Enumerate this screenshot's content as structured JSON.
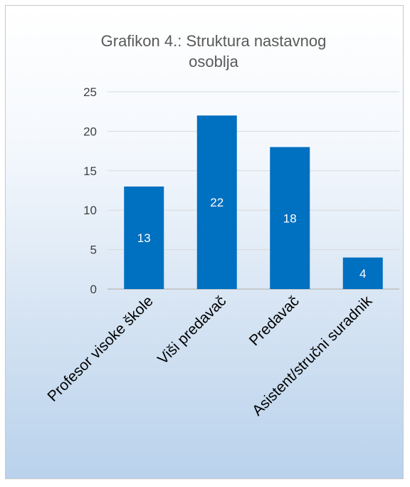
{
  "chart_data": {
    "type": "bar",
    "title_lines": [
      "Grafikon 4.: Struktura  nastavnog",
      "osoblja"
    ],
    "categories": [
      "Profesor visoke škole",
      "Viši predavač",
      "Predavač",
      "Asistent/stručni suradnik"
    ],
    "values": [
      13,
      22,
      18,
      4
    ],
    "ylim": [
      0,
      25
    ],
    "yticks": [
      0,
      5,
      10,
      15,
      20,
      25
    ],
    "grid": true,
    "data_labels": true,
    "bar_color": "#0070c0"
  }
}
